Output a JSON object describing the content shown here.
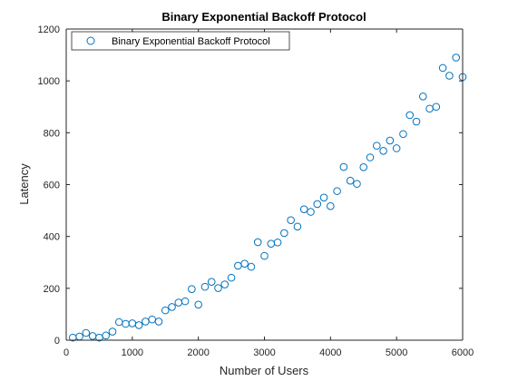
{
  "chart_data": {
    "type": "scatter",
    "title": "Binary Exponential Backoff Protocol",
    "xlabel": "Number of Users",
    "ylabel": "Latency",
    "xlim": [
      0,
      6000
    ],
    "ylim": [
      0,
      1200
    ],
    "xticks": [
      0,
      1000,
      2000,
      3000,
      4000,
      5000,
      6000
    ],
    "yticks": [
      0,
      200,
      400,
      600,
      800,
      1000,
      1200
    ],
    "grid": false,
    "legend": {
      "position": "top-left",
      "entries": [
        "Binary Exponential Backoff Protocol"
      ]
    },
    "marker_color": "#0072BD",
    "series": [
      {
        "name": "Binary Exponential Backoff Protocol",
        "marker": "circle",
        "x": [
          100,
          200,
          300,
          400,
          500,
          600,
          700,
          800,
          900,
          1000,
          1100,
          1200,
          1300,
          1400,
          1500,
          1600,
          1700,
          1800,
          1900,
          2000,
          2100,
          2200,
          2300,
          2400,
          2500,
          2600,
          2700,
          2800,
          2900,
          3000,
          3100,
          3200,
          3300,
          3400,
          3500,
          3600,
          3700,
          3800,
          3900,
          4000,
          4100,
          4200,
          4300,
          4400,
          4500,
          4600,
          4700,
          4800,
          4900,
          5000,
          5100,
          5200,
          5300,
          5400,
          5500,
          5600,
          5700,
          5800,
          5900,
          6000
        ],
        "y": [
          10,
          14,
          28,
          16,
          10,
          18,
          33,
          70,
          63,
          65,
          58,
          72,
          80,
          72,
          115,
          128,
          145,
          150,
          197,
          137,
          206,
          225,
          201,
          215,
          241,
          287,
          295,
          283,
          378,
          325,
          372,
          377,
          413,
          463,
          438,
          505,
          495,
          525,
          550,
          517,
          575,
          668,
          615,
          603,
          667,
          705,
          750,
          730,
          770,
          740,
          795,
          868,
          843,
          940,
          893,
          900,
          1050,
          1020,
          1090,
          1015
        ]
      }
    ]
  }
}
